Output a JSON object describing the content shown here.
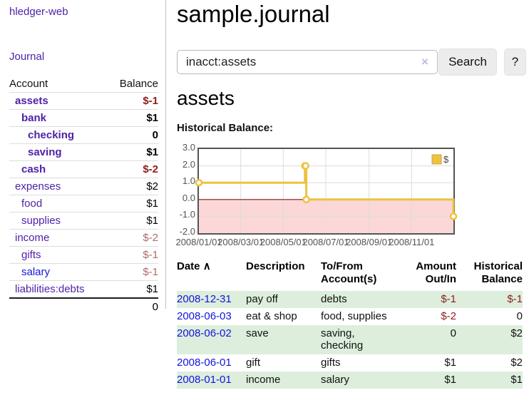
{
  "app": {
    "title": "hledger-web"
  },
  "nav": {
    "journal": "Journal"
  },
  "sidebar": {
    "account_header": "Account",
    "balance_header": "Balance",
    "accounts": [
      {
        "name": "assets",
        "indent": 1,
        "bold": true,
        "balance": "$-1",
        "neg": true,
        "muted": false,
        "blue": false
      },
      {
        "name": "bank",
        "indent": 2,
        "bold": true,
        "balance": "$1",
        "neg": false,
        "muted": false,
        "blue": false
      },
      {
        "name": "checking",
        "indent": 3,
        "bold": true,
        "balance": "0",
        "neg": false,
        "muted": false,
        "blue": false
      },
      {
        "name": "saving",
        "indent": 3,
        "bold": true,
        "balance": "$1",
        "neg": false,
        "muted": false,
        "blue": false
      },
      {
        "name": "cash",
        "indent": 2,
        "bold": true,
        "balance": "$-2",
        "neg": true,
        "muted": false,
        "blue": false
      },
      {
        "name": "expenses",
        "indent": 1,
        "bold": false,
        "balance": "$2",
        "neg": false,
        "muted": false,
        "blue": false
      },
      {
        "name": "food",
        "indent": 2,
        "bold": false,
        "balance": "$1",
        "neg": false,
        "muted": false,
        "blue": false
      },
      {
        "name": "supplies",
        "indent": 2,
        "bold": false,
        "balance": "$1",
        "neg": false,
        "muted": false,
        "blue": false
      },
      {
        "name": "income",
        "indent": 1,
        "bold": false,
        "balance": "$-2",
        "neg": true,
        "muted": true,
        "blue": false
      },
      {
        "name": "gifts",
        "indent": 2,
        "bold": false,
        "balance": "$-1",
        "neg": true,
        "muted": true,
        "blue": false
      },
      {
        "name": "salary",
        "indent": 2,
        "bold": false,
        "balance": "$-1",
        "neg": true,
        "muted": true,
        "blue": true
      },
      {
        "name": "liabilities:debts",
        "indent": 1,
        "bold": false,
        "balance": "$1",
        "neg": false,
        "muted": false,
        "blue": false
      }
    ],
    "total": "0"
  },
  "main": {
    "title": "sample.journal",
    "search": {
      "value": "inacct:assets",
      "clear": "×",
      "button": "Search",
      "help": "?"
    },
    "heading": "assets",
    "chart_label": "Historical Balance:"
  },
  "chart_data": {
    "type": "line",
    "title": "Historical Balance:",
    "step": true,
    "x": [
      "2008-01-01",
      "2008-06-01",
      "2008-06-02",
      "2008-06-03",
      "2008-12-31"
    ],
    "series": [
      {
        "name": "$",
        "color": "#edc240",
        "values": [
          1,
          2,
          2,
          0,
          -1
        ]
      }
    ],
    "x_range": [
      "2008-01-01",
      "2008-12-31"
    ],
    "ylim": [
      -2,
      3
    ],
    "y_ticks": [
      3.0,
      2.0,
      1.0,
      0.0,
      -1.0,
      -2.0
    ],
    "x_ticks": [
      {
        "label": "2008/01/01",
        "date": "2008-01-01"
      },
      {
        "label": "2008/03/01",
        "date": "2008-03-01"
      },
      {
        "label": "2008/05/01",
        "date": "2008-05-01"
      },
      {
        "label": "2008/07/01",
        "date": "2008-07-01"
      },
      {
        "label": "2008/09/01",
        "date": "2008-09-01"
      },
      {
        "label": "2008/11/01",
        "date": "2008-11-01"
      }
    ],
    "legend_position": "top-right",
    "legend_label": "$",
    "grid": true,
    "colors": {
      "line": "#edc240",
      "marker_fill": "#ffffff",
      "legend_box_border": "#cda73a",
      "negative_region": "#fbd7d7",
      "zero_line": "#8b1a1a",
      "gridline": "#dcdcdc",
      "plot_border": "#545454",
      "axis_text": "#545454"
    }
  },
  "register": {
    "columns": [
      "Date",
      "Description",
      "To/From Account(s)",
      "Amount Out/In",
      "Historical Balance"
    ],
    "sort_indicator": "∧",
    "rows": [
      {
        "date": "2008-12-31",
        "description": "pay off",
        "accounts": "debts",
        "amount": "$-1",
        "balance": "$-1",
        "amount_neg": true,
        "balance_neg": true,
        "shaded": true
      },
      {
        "date": "2008-06-03",
        "description": "eat & shop",
        "accounts": "food, supplies",
        "amount": "$-2",
        "balance": "0",
        "amount_neg": true,
        "balance_neg": false,
        "shaded": false
      },
      {
        "date": "2008-06-02",
        "description": "save",
        "accounts": "saving, checking",
        "amount": "0",
        "balance": "$2",
        "amount_neg": false,
        "balance_neg": false,
        "shaded": true
      },
      {
        "date": "2008-06-01",
        "description": "gift",
        "accounts": "gifts",
        "amount": "$1",
        "balance": "$2",
        "amount_neg": false,
        "balance_neg": false,
        "shaded": false
      },
      {
        "date": "2008-01-01",
        "description": "income",
        "accounts": "salary",
        "amount": "$1",
        "balance": "$1",
        "amount_neg": false,
        "balance_neg": false,
        "shaded": true
      }
    ]
  }
}
